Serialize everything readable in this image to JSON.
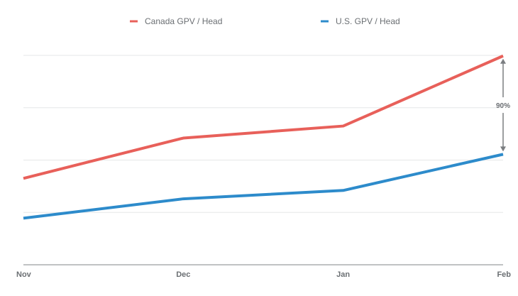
{
  "chart_data": {
    "type": "line",
    "title": "",
    "xlabel": "",
    "ylabel": "",
    "x": [
      "Nov",
      "Dec",
      "Jan",
      "Feb"
    ],
    "ylim": [
      0,
      4
    ],
    "y_units": "relative gridline units (no y-axis labels shown)",
    "grid": true,
    "legend_position": "top",
    "series": [
      {
        "name": "Canada GPV / Head",
        "color": "#e8605a",
        "values": [
          1.65,
          2.42,
          2.65,
          3.99
        ]
      },
      {
        "name": "U.S. GPV / Head",
        "color": "#2d8bcb",
        "values": [
          0.89,
          1.26,
          1.42,
          2.11
        ]
      }
    ],
    "annotations": [
      {
        "label": "90%",
        "at_x": "Feb",
        "type": "double-arrow",
        "from_series": "U.S. GPV / Head",
        "to_series": "Canada GPV / Head"
      }
    ]
  }
}
